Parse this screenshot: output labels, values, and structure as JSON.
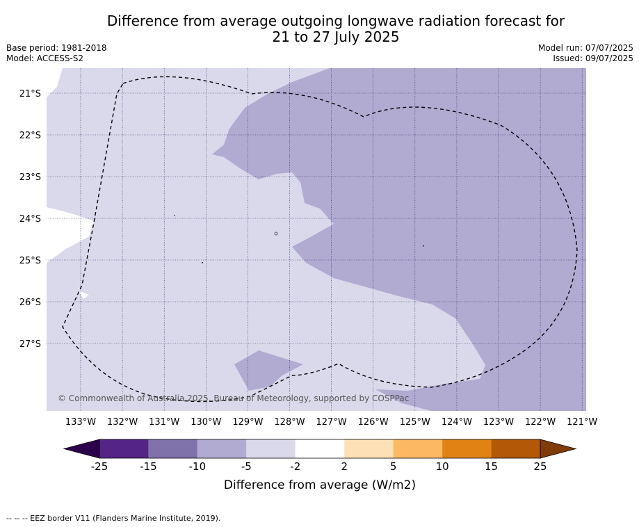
{
  "title": {
    "line1": "Difference from average outgoing longwave radiation forecast for",
    "line2": "21 to 27 July 2025"
  },
  "meta_left": {
    "base_period": "Base period: 1981-2018",
    "model": "Model: ACCESS-S2"
  },
  "meta_right": {
    "model_run": "Model run: 07/07/2025",
    "issued": "Issued: 09/07/2025"
  },
  "map": {
    "lat_labels": [
      "21°S",
      "22°S",
      "23°S",
      "24°S",
      "25°S",
      "26°S",
      "27°S"
    ],
    "lon_labels": [
      "133°W",
      "132°W",
      "131°W",
      "130°W",
      "129°W",
      "128°W",
      "127°W",
      "126°W",
      "125°W",
      "124°W",
      "123°W",
      "122°W",
      "121°W"
    ],
    "copyright": "© Commonwealth of Australia 2025, Bureau of Meteorology, supported by COSPPac",
    "fill_colors": {
      "minus10_to_minus5": "#b1aad1",
      "minus5_to_minus2": "#d9d9eb",
      "minus2_to_2": "#ffffff"
    }
  },
  "colorbar": {
    "label": "Difference from average (W/m2)",
    "tick_labels": [
      "-25",
      "-15",
      "-10",
      "-5",
      "-2",
      "2",
      "5",
      "10",
      "15",
      "25"
    ],
    "colors": [
      "#552586",
      "#7f71aa",
      "#b1aad1",
      "#d9d9eb",
      "#ffffff",
      "#fee0b6",
      "#fdb863",
      "#e08214",
      "#b35806"
    ],
    "extend_low_color": "#2d004b",
    "extend_high_color": "#7f3b08"
  },
  "footer": "--  --  -- EEZ border V11 (Flanders Marine Institute, 2019)."
}
